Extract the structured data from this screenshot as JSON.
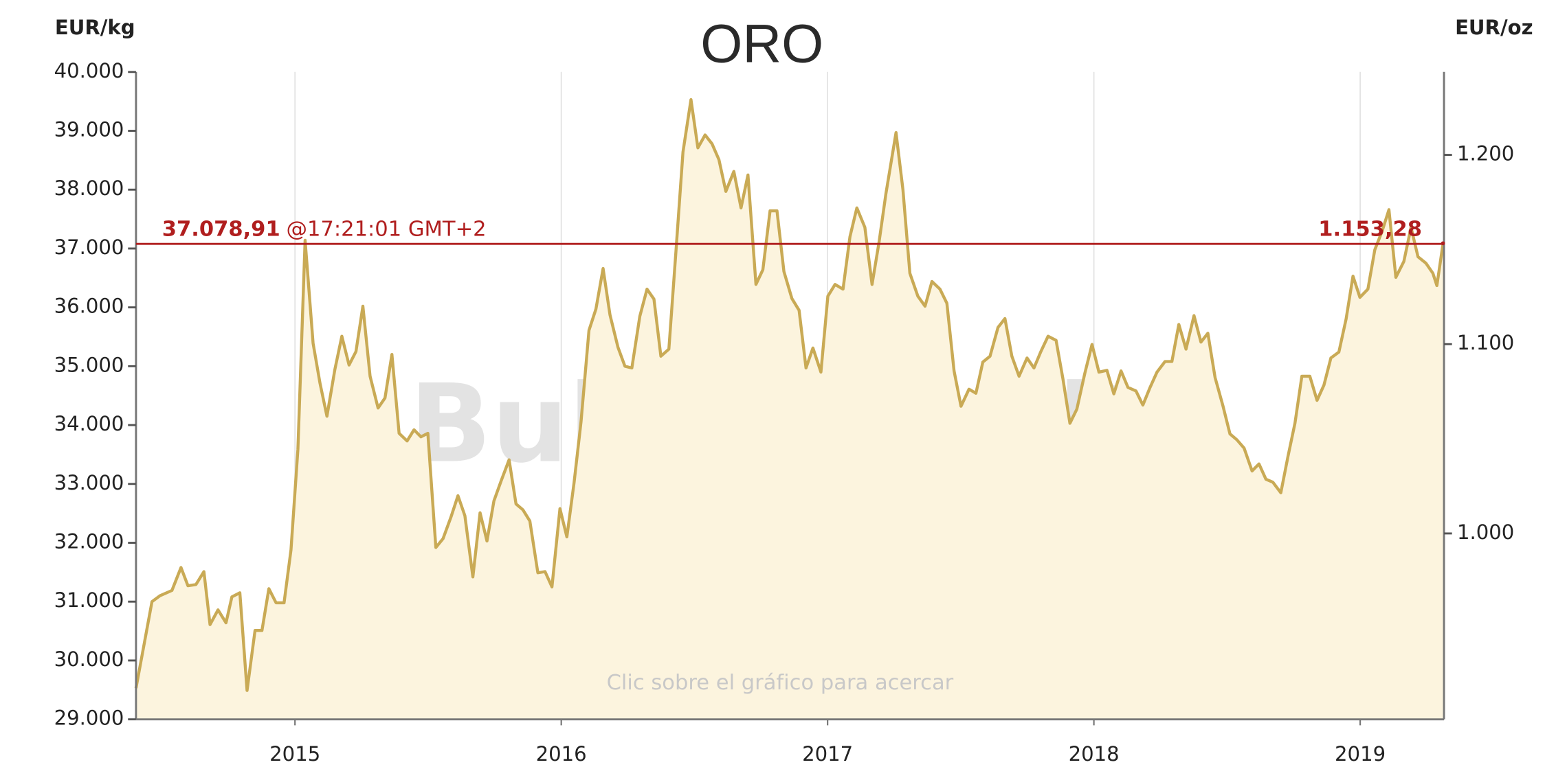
{
  "chart_data": {
    "type": "line",
    "title": "ORO",
    "ylabel": "EUR/kg",
    "y2label": "EUR/oz",
    "watermark": "BullionVault",
    "hint": "Clic sobre el gráfico para acercar",
    "current_price": {
      "value": 37078.91,
      "label": "37.078,91"
    },
    "current_time": "@17:21:01 GMT+2",
    "current_price_oz": {
      "value": 1153.28,
      "label": "1.153,28"
    },
    "line_color": "#c9aa55",
    "fill_color": "#fcf4de",
    "reference_color": "#b01e1e",
    "grid": true,
    "xlim": [
      2014.403,
      2019.311
    ],
    "xticks": [
      2015,
      2016,
      2017,
      2018,
      2019
    ],
    "ylim": [
      29000,
      40000
    ],
    "yticks": [
      {
        "value": 29000,
        "label": "29.000"
      },
      {
        "value": 30000,
        "label": "30.000"
      },
      {
        "value": 31000,
        "label": "31.000"
      },
      {
        "value": 32000,
        "label": "32.000"
      },
      {
        "value": 33000,
        "label": "33.000"
      },
      {
        "value": 34000,
        "label": "34.000"
      },
      {
        "value": 35000,
        "label": "35.000"
      },
      {
        "value": 36000,
        "label": "36.000"
      },
      {
        "value": 37000,
        "label": "37.000"
      },
      {
        "value": 38000,
        "label": "38.000"
      },
      {
        "value": 39000,
        "label": "39.000"
      },
      {
        "value": 40000,
        "label": "40.000"
      }
    ],
    "y2lim": [
      901.8,
      1243.8
    ],
    "y2ticks": [
      {
        "value": 1000,
        "label": "1.000"
      },
      {
        "value": 1100,
        "label": "1.100"
      },
      {
        "value": 1200,
        "label": "1.200"
      }
    ],
    "x": [
      2014.403,
      2014.463,
      2014.493,
      2014.538,
      2014.572,
      2014.598,
      2014.628,
      2014.658,
      2014.681,
      2014.711,
      2014.741,
      2014.763,
      2014.793,
      2014.82,
      2014.85,
      2014.876,
      2014.902,
      2014.929,
      2014.959,
      2014.985,
      2015.011,
      2015.038,
      2015.068,
      2015.094,
      2015.12,
      2015.15,
      2015.176,
      2015.203,
      2015.229,
      2015.255,
      2015.282,
      2015.312,
      2015.338,
      2015.364,
      2015.391,
      2015.421,
      2015.447,
      2015.473,
      2015.499,
      2015.529,
      2015.556,
      2015.586,
      2015.612,
      2015.638,
      2015.668,
      2015.695,
      2015.721,
      2015.747,
      2015.774,
      2015.804,
      2015.83,
      2015.856,
      2015.882,
      2015.912,
      2015.939,
      2015.965,
      2015.995,
      2016.021,
      2016.048,
      2016.074,
      2016.104,
      2016.13,
      2016.157,
      2016.183,
      2016.213,
      2016.239,
      2016.265,
      2016.295,
      2016.322,
      2016.348,
      2016.374,
      2016.404,
      2016.431,
      2016.457,
      2016.487,
      2016.513,
      2016.54,
      2016.566,
      2016.592,
      2016.618,
      2016.648,
      2016.675,
      2016.701,
      2016.731,
      2016.757,
      2016.784,
      2016.81,
      2016.836,
      2016.866,
      2016.893,
      2016.919,
      2016.945,
      2016.975,
      2017.001,
      2017.028,
      2017.058,
      2017.084,
      2017.11,
      2017.14,
      2017.167,
      2017.193,
      2017.219,
      2017.257,
      2017.283,
      2017.309,
      2017.339,
      2017.366,
      2017.392,
      2017.422,
      2017.448,
      2017.475,
      2017.501,
      2017.531,
      2017.557,
      2017.583,
      2017.61,
      2017.64,
      2017.666,
      2017.692,
      2017.719,
      2017.749,
      2017.775,
      2017.801,
      2017.828,
      2017.858,
      2017.884,
      2017.91,
      2017.936,
      2017.966,
      2017.993,
      2018.019,
      2018.049,
      2018.075,
      2018.102,
      2018.128,
      2018.158,
      2018.184,
      2018.211,
      2018.237,
      2018.267,
      2018.293,
      2018.319,
      2018.346,
      2018.376,
      2018.402,
      2018.428,
      2018.455,
      2018.485,
      2018.511,
      2018.537,
      2018.564,
      2018.594,
      2018.62,
      2018.646,
      2018.672,
      2018.702,
      2018.729,
      2018.755,
      2018.781,
      2018.811,
      2018.838,
      2018.864,
      2018.89,
      2018.92,
      2018.947,
      2018.973,
      2018.999,
      2019.029,
      2019.055,
      2019.082,
      2019.108,
      2019.134,
      2019.164,
      2019.191,
      2019.217,
      2019.247,
      2019.273,
      2019.288,
      2019.311
    ],
    "values": [
      29530,
      31000,
      31100,
      31190,
      31580,
      31270,
      31290,
      31510,
      30610,
      30860,
      30640,
      31080,
      31150,
      29490,
      30510,
      30510,
      31220,
      30980,
      30980,
      31880,
      33590,
      37140,
      35390,
      34710,
      34150,
      34950,
      35510,
      35020,
      35250,
      36020,
      34830,
      34290,
      34460,
      35200,
      33860,
      33730,
      33920,
      33800,
      33860,
      31920,
      32070,
      32440,
      32800,
      32460,
      31420,
      32510,
      32030,
      32710,
      33050,
      33410,
      32660,
      32560,
      32370,
      31490,
      31510,
      31250,
      32580,
      32100,
      33020,
      34050,
      35610,
      35970,
      36660,
      35870,
      35320,
      35000,
      34970,
      35850,
      36310,
      36140,
      35170,
      35290,
      36980,
      38640,
      39530,
      38710,
      38930,
      38780,
      38510,
      37970,
      38310,
      37690,
      38250,
      36390,
      36640,
      37640,
      37640,
      36610,
      36150,
      35950,
      34970,
      35310,
      34900,
      36190,
      36390,
      36310,
      37200,
      37690,
      37360,
      36390,
      37100,
      37930,
      38970,
      38000,
      36580,
      36190,
      36020,
      36440,
      36310,
      36070,
      34920,
      34320,
      34610,
      34540,
      35070,
      35170,
      35660,
      35810,
      35170,
      34830,
      35140,
      34970,
      35250,
      35510,
      35440,
      34780,
      34030,
      34270,
      34880,
      35370,
      34900,
      34930,
      34530,
      34920,
      34640,
      34580,
      34340,
      34640,
      34900,
      35080,
      35080,
      35710,
      35290,
      35860,
      35410,
      35560,
      34810,
      34320,
      33850,
      33750,
      33610,
      33220,
      33340,
      33080,
      33030,
      32850,
      33470,
      34030,
      34830,
      34830,
      34420,
      34680,
      35140,
      35240,
      35800,
      36530,
      36170,
      36310,
      36980,
      37290,
      37660,
      36510,
      36780,
      37360,
      36860,
      36750,
      36580,
      36370,
      37079
    ]
  }
}
